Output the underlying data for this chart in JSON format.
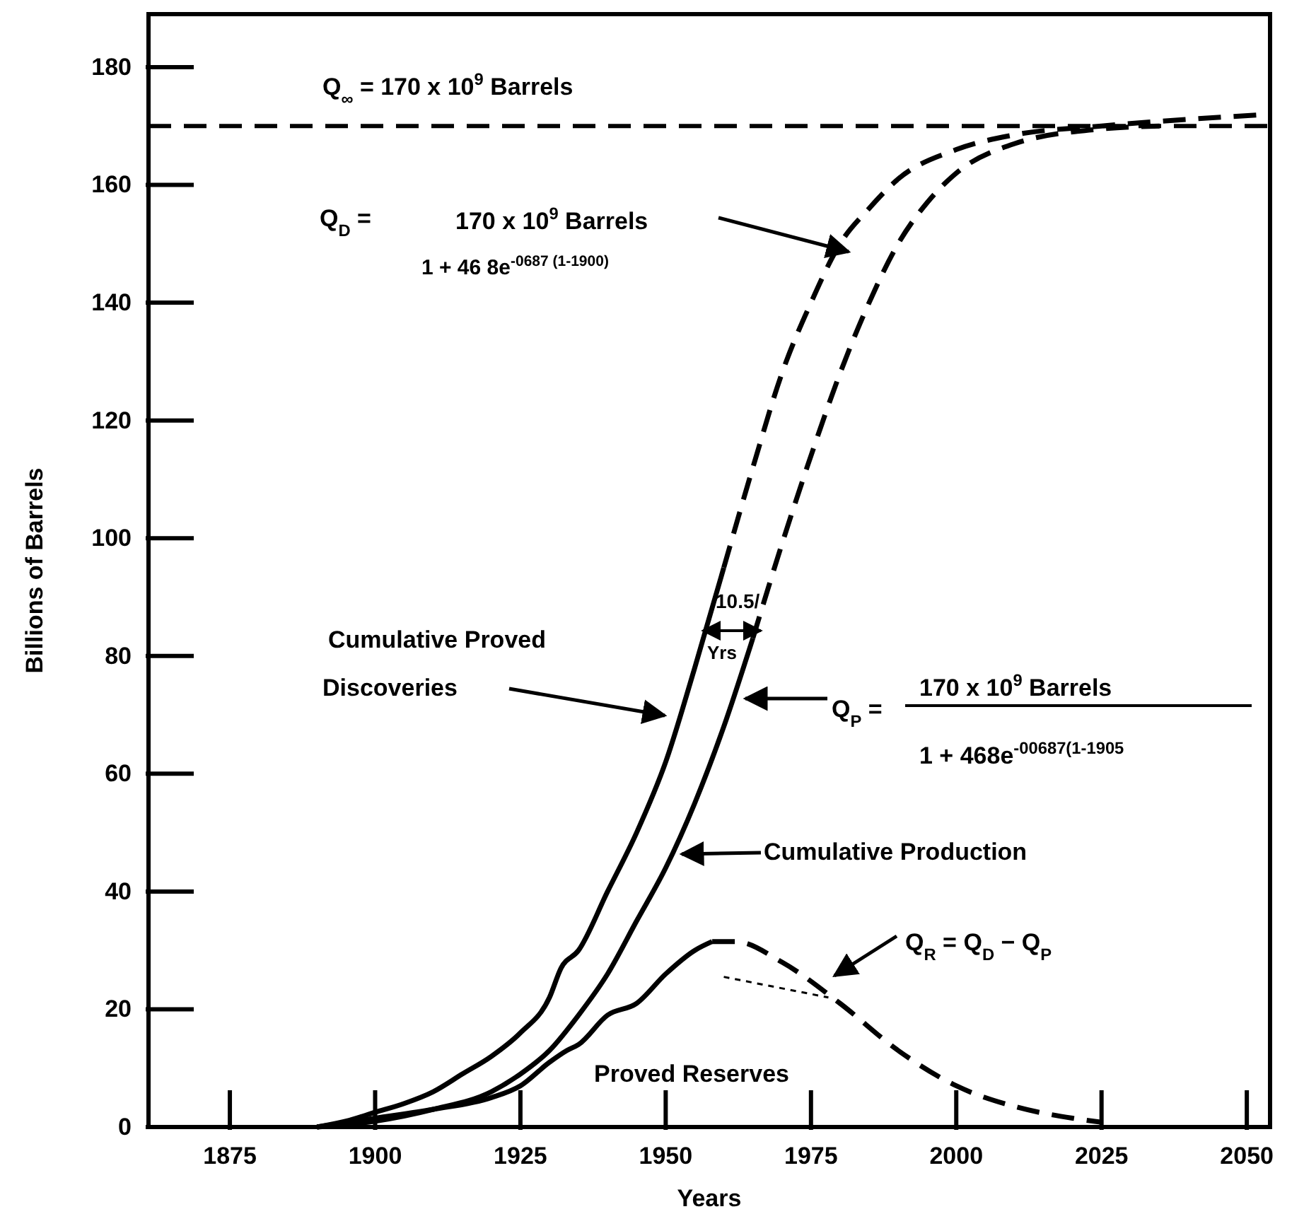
{
  "chart_data": {
    "type": "line",
    "xlabel": "Years",
    "ylabel": "Billions of Barrels",
    "xlim": [
      1861,
      2054
    ],
    "ylim": [
      0,
      189
    ],
    "xticks": [
      1875,
      1900,
      1925,
      1950,
      1975,
      2000,
      2025,
      {
        "value": 2050,
        "label": "2050"
      }
    ],
    "yticks": [
      0,
      20,
      40,
      60,
      80,
      100,
      120,
      140,
      160,
      180
    ],
    "grid": false,
    "marker": "none",
    "series": [
      {
        "color": "#000000",
        "line_style": "solid",
        "x": [
          1890,
          1895,
          1900,
          1905,
          1910,
          1915,
          1920,
          1925,
          1930,
          1932,
          1935,
          1940,
          1945,
          1950,
          1955,
          1960
        ],
        "values": [
          0,
          1,
          2.5,
          4,
          6,
          9,
          12,
          16,
          22,
          27,
          30,
          40,
          50,
          62,
          78,
          95
        ]
      },
      {
        "color": "#000000",
        "line_style": "dashed",
        "x": [
          1960,
          1965,
          1970,
          1975,
          1980,
          1985,
          1990,
          2000,
          2010,
          2025,
          2054
        ],
        "values": [
          95,
          112,
          128,
          140,
          150,
          156,
          161,
          166,
          168.5,
          170,
          172
        ]
      },
      {
        "color": "#000000",
        "line_style": "solid",
        "x": [
          1890,
          1900,
          1910,
          1920,
          1925,
          1930,
          1935,
          1940,
          1945,
          1950,
          1955,
          1960,
          1965
        ],
        "values": [
          0,
          1,
          3,
          6,
          9,
          13,
          19,
          26,
          35,
          44,
          55,
          68,
          83
        ]
      },
      {
        "color": "#000000",
        "line_style": "dashed",
        "x": [
          1965,
          1970,
          1975,
          1980,
          1985,
          1990,
          1995,
          2000,
          2010,
          2025,
          2035
        ],
        "values": [
          83,
          99,
          114,
          128,
          140,
          150,
          157,
          162,
          167,
          169.5,
          170
        ]
      },
      {
        "color": "#000000",
        "line_style": "solid",
        "x": [
          1890,
          1900,
          1910,
          1920,
          1925,
          1930,
          1933,
          1935,
          1940,
          1945,
          1950,
          1955,
          1958
        ],
        "values": [
          0,
          1.5,
          3,
          5,
          7,
          11,
          13,
          14,
          19,
          21,
          26,
          30,
          31.5
        ]
      },
      {
        "color": "#000000",
        "line_style": "dashed",
        "x": [
          1958,
          1962,
          1970,
          1980,
          1990,
          2000,
          2010,
          2020,
          2025
        ],
        "values": [
          31.5,
          31.5,
          28,
          21,
          13,
          7,
          3.5,
          1.5,
          0.8
        ]
      },
      {
        "color": "#000000",
        "line_style": "dotted",
        "x": [
          1960,
          1978
        ],
        "values": [
          25.5,
          22
        ]
      }
    ],
    "ref_lines": [
      {
        "axis": "y",
        "value": 170,
        "label": "Q$_{∞}$ = 170 x 10$^{9}$ Barrels",
        "line_style": "dashed",
        "color": "#000000"
      }
    ],
    "annotations": [
      "Q$_{D}$ =",
      "170 x 10$^{9}$ Barrels",
      "1 + 46 8e$^{-0687 (1-1900)}$",
      "10.5/",
      "Yrs",
      "Cumulative Proved",
      "Discoveries",
      "Q$_{P}$ =",
      "170 x 10$^{9}$ Barrels",
      "1 + 468e$^{-00687(1-1905}$",
      "Cumulative Production",
      "Q$_{R}$ = Q$_{D}$ − Q$_{P}$",
      "Proved Reserves"
    ]
  }
}
